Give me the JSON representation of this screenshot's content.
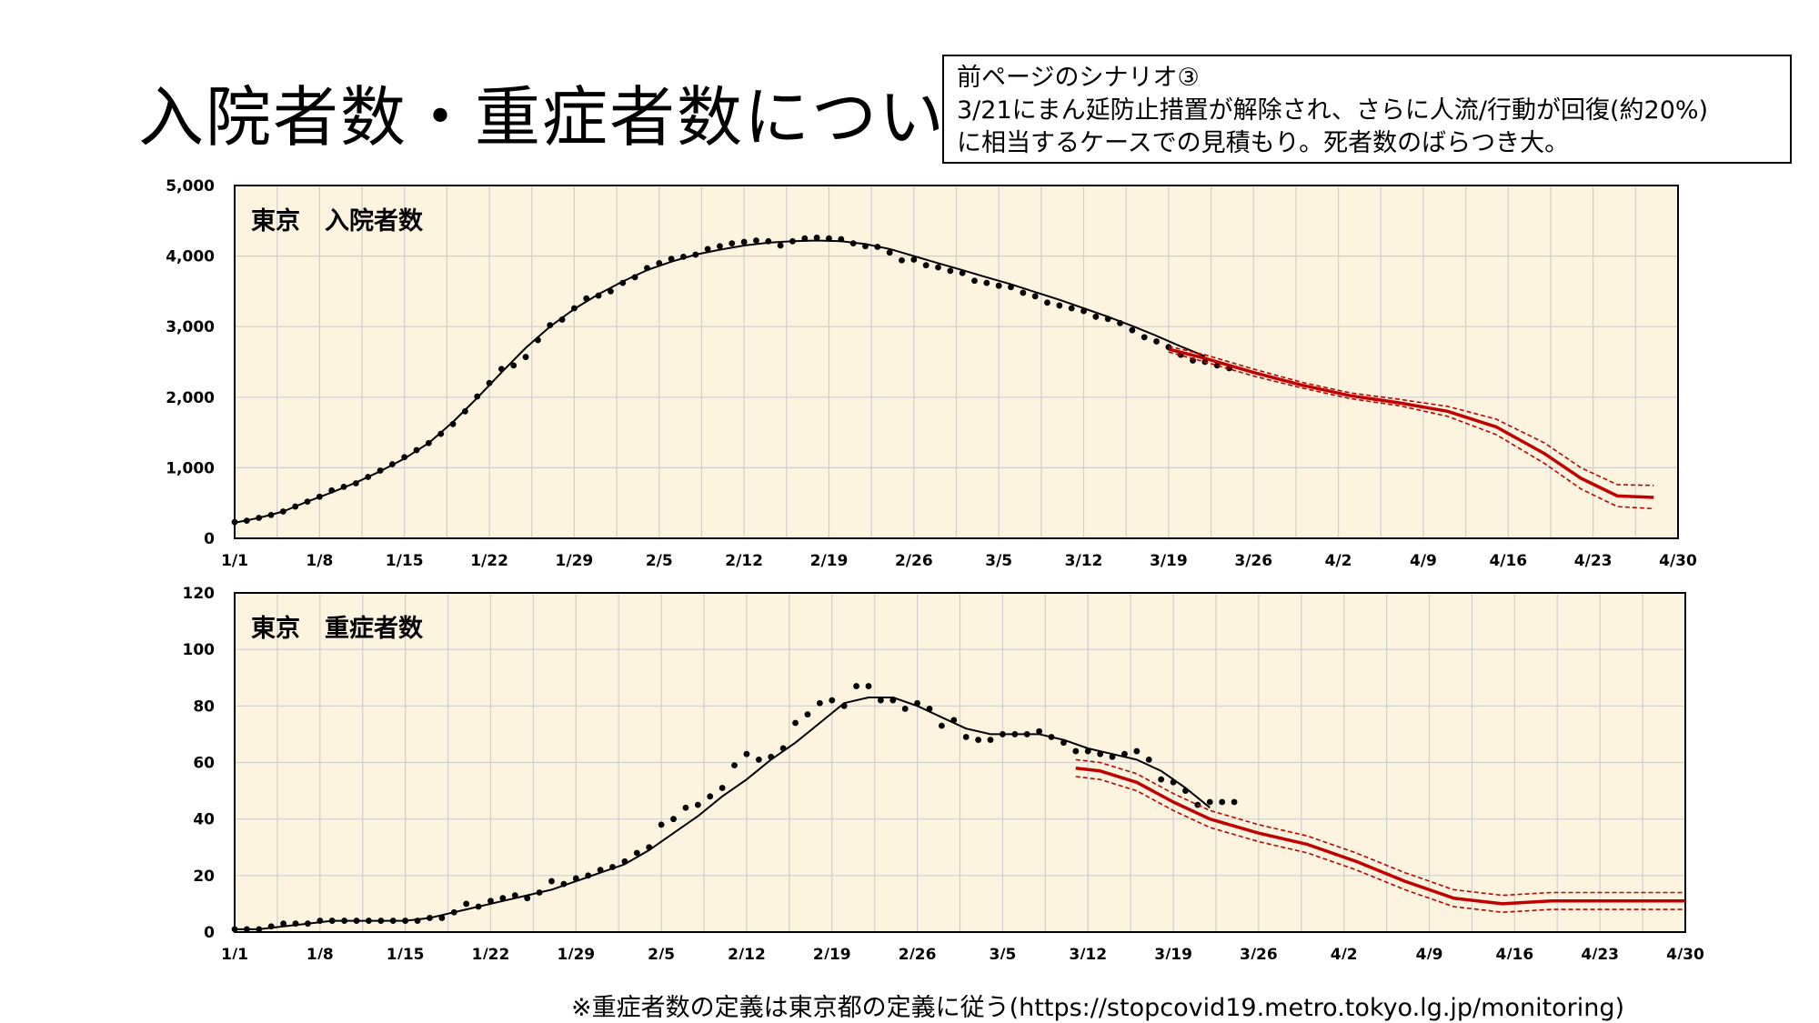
{
  "slide": {
    "title": "入院者数・重症者数について",
    "scenario_lines": [
      "前ページのシナリオ③",
      " 3/21にまん延防止措置が解除され、さらに人流/行動が回復(約20%)",
      "に相当するケースでの見積もり。死者数のばらつき大。"
    ],
    "footnote": "※重症者数の定義は東京都の定義に従う(https://stopcovid19.metro.tokyo.lg.jp/monitoring)"
  },
  "colors": {
    "plot_background": "#fdf4e0",
    "grid": "#cfcfcf",
    "observed": "#000000",
    "projection": "#c00000"
  },
  "chart_data": [
    {
      "type": "line",
      "title": "東京　入院者数",
      "x_tick_labels": [
        "1/1",
        "1/8",
        "1/15",
        "1/22",
        "1/29",
        "2/5",
        "2/12",
        "2/19",
        "2/26",
        "3/5",
        "3/12",
        "3/19",
        "3/26",
        "4/2",
        "4/9",
        "4/16",
        "4/23",
        "4/30"
      ],
      "x_range_days": [
        0,
        119
      ],
      "ylim": [
        0,
        5000
      ],
      "y_ticks": [
        0,
        1000,
        2000,
        3000,
        4000,
        5000
      ],
      "y_tick_labels": [
        "0",
        "1,000",
        "2,000",
        "3,000",
        "4,000",
        "5,000"
      ],
      "grid": true,
      "series": [
        {
          "style": "dots",
          "x": [
            0,
            1,
            2,
            3,
            4,
            5,
            6,
            7,
            8,
            9,
            10,
            11,
            12,
            13,
            14,
            15,
            16,
            17,
            18,
            19,
            20,
            21,
            22,
            23,
            24,
            25,
            26,
            27,
            28,
            29,
            30,
            31,
            32,
            33,
            34,
            35,
            36,
            37,
            38,
            39,
            40,
            41,
            42,
            43,
            44,
            45,
            46,
            47,
            48,
            49,
            50,
            51,
            52,
            53,
            54,
            55,
            56,
            57,
            58,
            59,
            60,
            61,
            62,
            63,
            64,
            65,
            66,
            67,
            68,
            69,
            70,
            71,
            72,
            73,
            74,
            75,
            76,
            77,
            78,
            79,
            80,
            81,
            82
          ],
          "y": [
            230,
            250,
            290,
            330,
            380,
            450,
            520,
            590,
            680,
            730,
            780,
            870,
            960,
            1050,
            1150,
            1250,
            1350,
            1480,
            1620,
            1800,
            2010,
            2200,
            2400,
            2450,
            2570,
            2810,
            3020,
            3100,
            3260,
            3400,
            3440,
            3500,
            3620,
            3700,
            3830,
            3900,
            3960,
            3990,
            4020,
            4100,
            4140,
            4180,
            4200,
            4220,
            4210,
            4150,
            4210,
            4250,
            4260,
            4250,
            4240,
            4180,
            4140,
            4130,
            4050,
            3940,
            3950,
            3870,
            3840,
            3790,
            3760,
            3650,
            3620,
            3580,
            3560,
            3480,
            3430,
            3340,
            3300,
            3260,
            3220,
            3140,
            3110,
            3050,
            2950,
            2850,
            2790,
            2710,
            2600,
            2520,
            2500,
            2450,
            2410
          ]
        },
        {
          "style": "line",
          "x": [
            0,
            2,
            4,
            6,
            8,
            10,
            12,
            14,
            16,
            18,
            20,
            22,
            24,
            26,
            28,
            30,
            32,
            34,
            36,
            38,
            40,
            42,
            44,
            46,
            48,
            50,
            52,
            54,
            56,
            58,
            60,
            62,
            64,
            66,
            68,
            70,
            72,
            74,
            76,
            78,
            80
          ],
          "y": [
            220,
            290,
            380,
            520,
            650,
            790,
            950,
            1130,
            1350,
            1650,
            1990,
            2350,
            2700,
            3000,
            3250,
            3460,
            3640,
            3800,
            3920,
            4020,
            4090,
            4150,
            4190,
            4210,
            4220,
            4210,
            4170,
            4100,
            4000,
            3900,
            3800,
            3700,
            3600,
            3490,
            3380,
            3260,
            3140,
            3010,
            2870,
            2720,
            2580
          ]
        },
        {
          "style": "projection-center",
          "x": [
            77,
            80,
            84,
            88,
            92,
            96,
            100,
            104,
            108,
            111,
            114,
            117
          ],
          "y": [
            2680,
            2550,
            2350,
            2170,
            2020,
            1920,
            1800,
            1580,
            1200,
            850,
            600,
            580
          ]
        },
        {
          "style": "projection-upper",
          "x": [
            77,
            80,
            84,
            88,
            92,
            96,
            100,
            104,
            108,
            111,
            114,
            117
          ],
          "y": [
            2720,
            2600,
            2400,
            2210,
            2060,
            1970,
            1870,
            1690,
            1350,
            1000,
            760,
            750
          ]
        },
        {
          "style": "projection-lower",
          "x": [
            77,
            80,
            84,
            88,
            92,
            96,
            100,
            104,
            108,
            111,
            114,
            117
          ],
          "y": [
            2640,
            2500,
            2300,
            2130,
            1980,
            1880,
            1730,
            1470,
            1060,
            700,
            450,
            420
          ]
        }
      ]
    },
    {
      "type": "line",
      "title": "東京　重症者数",
      "x_tick_labels": [
        "1/1",
        "1/8",
        "1/15",
        "1/22",
        "1/29",
        "2/5",
        "2/12",
        "2/19",
        "2/26",
        "3/5",
        "3/12",
        "3/19",
        "3/26",
        "4/2",
        "4/9",
        "4/16",
        "4/23",
        "4/30"
      ],
      "x_range_days": [
        0,
        119
      ],
      "ylim": [
        0,
        120
      ],
      "y_ticks": [
        0,
        20,
        40,
        60,
        80,
        100,
        120
      ],
      "y_tick_labels": [
        "0",
        "20",
        "40",
        "60",
        "80",
        "100",
        "120"
      ],
      "grid": true,
      "series": [
        {
          "style": "dots",
          "x": [
            0,
            1,
            2,
            3,
            4,
            5,
            6,
            7,
            8,
            9,
            10,
            11,
            12,
            13,
            14,
            15,
            16,
            17,
            18,
            19,
            20,
            21,
            22,
            23,
            24,
            25,
            26,
            27,
            28,
            29,
            30,
            31,
            32,
            33,
            34,
            35,
            36,
            37,
            38,
            39,
            40,
            41,
            42,
            43,
            44,
            45,
            46,
            47,
            48,
            49,
            50,
            51,
            52,
            53,
            54,
            55,
            56,
            57,
            58,
            59,
            60,
            61,
            62,
            63,
            64,
            65,
            66,
            67,
            68,
            69,
            70,
            71,
            72,
            73,
            74,
            75,
            76,
            77,
            78,
            79,
            80,
            81,
            82
          ],
          "y": [
            1,
            1,
            1,
            2,
            3,
            3,
            3,
            4,
            4,
            4,
            4,
            4,
            4,
            4,
            4,
            4,
            5,
            5,
            7,
            10,
            9,
            11,
            12,
            13,
            12,
            14,
            18,
            17,
            19,
            20,
            22,
            23,
            25,
            28,
            30,
            38,
            40,
            44,
            45,
            48,
            51,
            59,
            63,
            61,
            62,
            65,
            74,
            77,
            81,
            82,
            80,
            87,
            87,
            82,
            82,
            79,
            81,
            79,
            73,
            75,
            69,
            68,
            68,
            70,
            70,
            70,
            71,
            69,
            67,
            64,
            64,
            63,
            62,
            63,
            64,
            61,
            54,
            53,
            50,
            45,
            46,
            46,
            46
          ]
        },
        {
          "style": "line",
          "x": [
            0,
            2,
            4,
            6,
            8,
            10,
            12,
            14,
            16,
            18,
            20,
            22,
            24,
            26,
            28,
            30,
            32,
            34,
            36,
            38,
            40,
            42,
            44,
            46,
            48,
            50,
            52,
            54,
            56,
            58,
            60,
            62,
            64,
            66,
            68,
            70,
            72,
            74,
            76,
            78,
            80
          ],
          "y": [
            1,
            1,
            2,
            3,
            4,
            4,
            4,
            4,
            5,
            7,
            9,
            11,
            13,
            15,
            18,
            21,
            24,
            29,
            35,
            41,
            48,
            54,
            61,
            67,
            74,
            81,
            83,
            83,
            80,
            76,
            72,
            70,
            70,
            70,
            68,
            65,
            63,
            61,
            57,
            51,
            44
          ]
        },
        {
          "style": "projection-center",
          "x": [
            69,
            71,
            74,
            77,
            80,
            84,
            88,
            92,
            96,
            100,
            104,
            108,
            112,
            116,
            119
          ],
          "y": [
            58,
            57,
            53,
            46,
            40,
            35,
            31,
            25,
            18,
            12,
            10,
            11,
            11,
            11,
            11
          ]
        },
        {
          "style": "projection-upper",
          "x": [
            69,
            71,
            74,
            77,
            80,
            84,
            88,
            92,
            96,
            100,
            104,
            108,
            112,
            116,
            119
          ],
          "y": [
            61,
            60,
            56,
            49,
            43,
            38,
            34,
            28,
            21,
            15,
            13,
            14,
            14,
            14,
            14
          ]
        },
        {
          "style": "projection-lower",
          "x": [
            69,
            71,
            74,
            77,
            80,
            84,
            88,
            92,
            96,
            100,
            104,
            108,
            112,
            116,
            119
          ],
          "y": [
            55,
            54,
            50,
            43,
            37,
            32,
            28,
            22,
            15,
            9,
            7,
            8,
            8,
            8,
            8
          ]
        }
      ]
    }
  ]
}
